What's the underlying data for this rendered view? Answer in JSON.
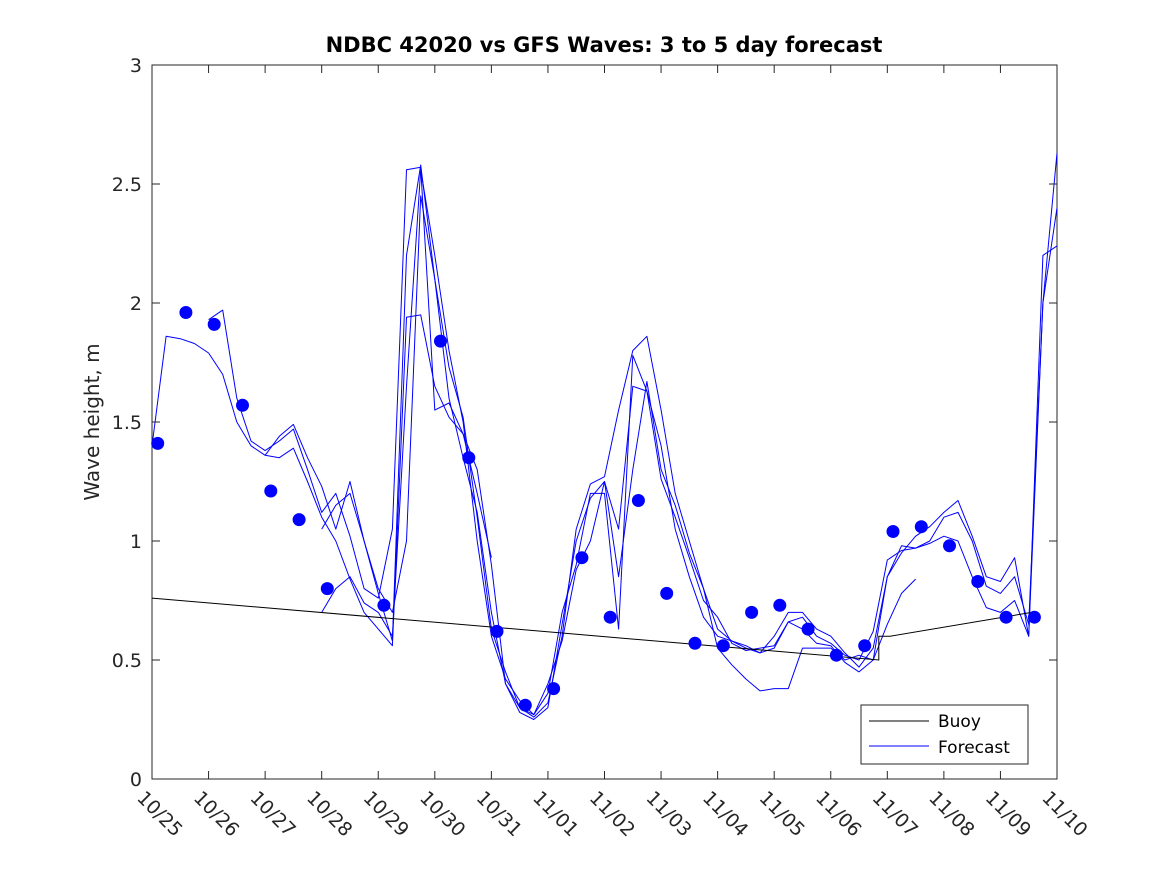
{
  "chart_data": {
    "type": "line",
    "title": "NDBC 42020 vs GFS Waves: 3 to 5 day forecast",
    "xlabel": "",
    "ylabel": "Wave height, m",
    "xlim": [
      0,
      16
    ],
    "ylim": [
      0,
      3
    ],
    "x_tick_values": [
      0,
      1,
      2,
      3,
      4,
      5,
      6,
      7,
      8,
      9,
      10,
      11,
      12,
      13,
      14,
      15,
      16
    ],
    "x_tick_labels": [
      "10/25",
      "10/26",
      "10/27",
      "10/28",
      "10/29",
      "10/30",
      "10/31",
      "11/01",
      "11/02",
      "11/03",
      "11/04",
      "11/05",
      "11/06",
      "11/07",
      "11/08",
      "11/09",
      "11/10"
    ],
    "y_tick_values": [
      0,
      0.5,
      1,
      1.5,
      2,
      2.5,
      3
    ],
    "y_tick_labels": [
      "0",
      "0.5",
      "1",
      "1.5",
      "2",
      "2.5",
      "3"
    ],
    "grid": false,
    "legend": {
      "position": "bottom-right",
      "entries": [
        {
          "label": "Buoy",
          "color": "#000000"
        },
        {
          "label": "Forecast",
          "color": "#0000ff"
        }
      ]
    },
    "buoy_line": {
      "name": "Buoy",
      "color": "#000000",
      "x": [
        0,
        12.85,
        12.85,
        13.05,
        15.55
      ],
      "y": [
        0.76,
        0.5,
        0.6,
        0.6,
        0.7
      ]
    },
    "buoy_points": {
      "name": "Buoy observations",
      "color": "#0000ff",
      "x": [
        0.1,
        0.6,
        1.1,
        1.6,
        2.1,
        2.6,
        3.1,
        4.1,
        5.1,
        5.6,
        6.1,
        6.6,
        7.1,
        7.6,
        8.1,
        8.6,
        9.1,
        9.6,
        10.1,
        10.6,
        11.1,
        11.6,
        12.1,
        12.6,
        13.1,
        13.6,
        14.1,
        14.6,
        15.1,
        15.6
      ],
      "y": [
        1.41,
        1.96,
        1.91,
        1.57,
        1.21,
        1.09,
        0.8,
        0.73,
        1.84,
        1.35,
        0.62,
        0.31,
        0.38,
        0.93,
        0.68,
        1.17,
        0.78,
        0.57,
        0.56,
        0.7,
        0.73,
        0.63,
        0.52,
        0.56,
        1.04,
        1.06,
        0.98,
        0.83,
        0.68,
        0.68
      ]
    },
    "series": [
      {
        "name": "Forecast",
        "color": "#0000ff",
        "x": [
          0,
          0.25,
          0.5,
          0.75,
          1.0,
          1.25,
          1.5,
          1.75,
          2.0,
          2.25,
          2.5,
          2.75,
          3.0,
          3.25,
          3.5,
          3.75,
          4.0,
          4.25,
          4.5,
          4.75,
          5.0,
          5.25,
          5.5,
          5.75,
          6.0,
          6.25,
          6.5,
          6.75,
          7.0,
          7.25,
          7.5,
          7.75,
          8.0,
          8.25,
          8.5,
          8.75,
          9.0,
          9.25,
          9.5,
          9.75,
          10.0,
          10.25,
          10.5,
          10.75,
          11.0,
          11.25,
          11.5,
          11.75,
          12.0,
          12.25,
          12.5,
          12.75,
          13.0,
          13.25,
          13.5,
          13.75,
          14.0,
          14.25,
          14.5,
          14.75,
          15.0,
          15.25,
          15.5,
          15.75,
          16.0
        ],
        "y": [
          1.4,
          1.86,
          1.85,
          1.83,
          1.79,
          1.7,
          1.5,
          1.4,
          1.36,
          1.35,
          1.39,
          1.25,
          1.1,
          1.0,
          0.84,
          0.7,
          0.63,
          0.56,
          1.94,
          1.95,
          1.65,
          1.52,
          1.45,
          1.3,
          0.9,
          0.4,
          0.3,
          0.26,
          0.32,
          0.6,
          1.05,
          1.24,
          1.27,
          1.55,
          1.8,
          1.86,
          1.55,
          1.2,
          1.0,
          0.8,
          0.63,
          0.58,
          0.55,
          0.53,
          0.55,
          0.66,
          0.68,
          0.6,
          0.57,
          0.52,
          0.5,
          0.62,
          0.92,
          0.96,
          0.97,
          0.99,
          1.02,
          1.0,
          0.85,
          0.72,
          0.7,
          0.75,
          0.6,
          2.2,
          2.24
        ]
      },
      {
        "name": "Forecast",
        "color": "#0000ff",
        "x": [
          1.0,
          1.25,
          1.5,
          1.75,
          2.0,
          2.25,
          2.5,
          2.75,
          3.0,
          3.25,
          3.5,
          3.75,
          4.0,
          4.25,
          4.5,
          4.75,
          5.0,
          5.25,
          5.5,
          5.75,
          6.0
        ],
        "y": [
          1.93,
          1.97,
          1.6,
          1.42,
          1.38,
          1.42,
          1.47,
          1.3,
          1.12,
          1.2,
          1.02,
          0.8,
          0.76,
          1.05,
          2.56,
          2.57,
          1.55,
          1.58,
          1.45,
          1.2,
          0.93
        ]
      },
      {
        "name": "Forecast",
        "color": "#0000ff",
        "x": [
          2.0,
          2.25,
          2.5,
          2.75,
          3.0,
          3.25,
          3.5,
          3.75,
          4.0,
          4.25,
          4.5,
          4.75,
          5.0,
          5.25,
          5.5,
          5.75,
          6.0,
          6.25,
          6.5,
          6.75,
          7.0,
          7.25,
          7.5,
          7.75,
          8.0,
          8.25,
          8.5,
          8.75,
          9.0,
          9.25,
          9.5,
          9.75,
          10.0,
          10.25,
          10.5,
          10.75,
          11.0,
          11.25,
          11.5,
          11.75,
          12.0,
          12.25,
          12.5,
          12.75,
          13.0,
          13.25,
          13.5,
          13.75,
          14.0,
          14.25,
          14.5,
          14.75,
          15.0,
          15.25,
          15.5,
          15.75,
          16.0
        ],
        "y": [
          1.36,
          1.44,
          1.49,
          1.35,
          1.23,
          1.05,
          1.25,
          1.0,
          0.78,
          0.58,
          2.2,
          2.58,
          2.1,
          1.6,
          1.35,
          1.12,
          0.7,
          0.4,
          0.28,
          0.25,
          0.3,
          0.65,
          1.0,
          1.18,
          1.25,
          1.05,
          1.65,
          1.63,
          1.4,
          1.05,
          0.85,
          0.68,
          0.6,
          0.58,
          0.56,
          0.53,
          0.6,
          0.7,
          0.7,
          0.63,
          0.6,
          0.53,
          0.47,
          0.55,
          0.85,
          0.95,
          1.02,
          1.06,
          1.12,
          1.17,
          1.02,
          0.85,
          0.83,
          0.93,
          0.6,
          2.0,
          2.63
        ]
      },
      {
        "name": "Forecast",
        "color": "#0000ff",
        "x": [
          3.0,
          3.25,
          3.5,
          3.75,
          4.0,
          4.25,
          4.5,
          4.75,
          5.0,
          5.25,
          5.5,
          5.75,
          6.0,
          6.25,
          6.5,
          6.75,
          7.0,
          7.25,
          7.5,
          7.75,
          8.0,
          8.25,
          8.5,
          8.75,
          9.0,
          9.25,
          9.5,
          9.75,
          10.0,
          10.25,
          10.5,
          10.75,
          11.0,
          11.25,
          11.5,
          11.75,
          12.0,
          12.25,
          12.5,
          12.75,
          13.0,
          13.25,
          13.5,
          13.75,
          14.0,
          14.25,
          14.5,
          14.75,
          15.0,
          15.25,
          15.5,
          15.75,
          16.0
        ],
        "y": [
          1.05,
          1.15,
          1.2,
          1.0,
          0.8,
          0.7,
          1.0,
          2.45,
          2.1,
          1.73,
          1.52,
          1.1,
          0.63,
          0.45,
          0.3,
          0.27,
          0.36,
          0.7,
          0.9,
          1.2,
          1.2,
          0.63,
          1.78,
          1.63,
          1.26,
          1.1,
          0.93,
          0.75,
          0.68,
          0.57,
          0.54,
          0.55,
          0.56,
          0.66,
          0.63,
          0.57,
          0.56,
          0.49,
          0.45,
          0.5,
          0.85,
          0.98,
          0.97,
          1.0,
          1.1,
          1.12,
          1.0,
          0.81,
          0.78,
          0.85,
          0.65,
          2.0,
          2.4
        ]
      },
      {
        "name": "Forecast",
        "color": "#0000ff",
        "x": [
          3.0,
          3.25,
          3.5,
          3.75,
          4.0,
          4.25,
          4.5,
          4.75,
          5.0,
          5.25,
          5.5,
          5.75,
          6.0,
          6.25,
          6.5,
          6.75,
          7.0,
          7.25,
          7.5,
          7.75,
          8.0,
          8.25,
          8.5,
          8.75,
          9.0,
          9.25,
          9.5,
          9.75,
          10.0,
          10.25,
          10.5,
          10.75,
          11.0,
          11.25,
          11.5,
          11.75,
          12.0,
          12.25,
          12.5,
          12.75,
          13.0,
          13.25,
          13.5
        ],
        "y": [
          0.7,
          0.8,
          0.85,
          0.74,
          0.7,
          0.6,
          1.65,
          2.56,
          2.2,
          1.8,
          1.5,
          1.0,
          0.6,
          0.42,
          0.33,
          0.27,
          0.4,
          0.58,
          0.88,
          1.0,
          1.25,
          0.85,
          1.3,
          1.67,
          1.3,
          1.15,
          0.95,
          0.8,
          0.55,
          0.48,
          0.42,
          0.37,
          0.38,
          0.38,
          0.55,
          0.55,
          0.55,
          0.5,
          0.52,
          0.5,
          0.65,
          0.78,
          0.84
        ]
      }
    ]
  }
}
